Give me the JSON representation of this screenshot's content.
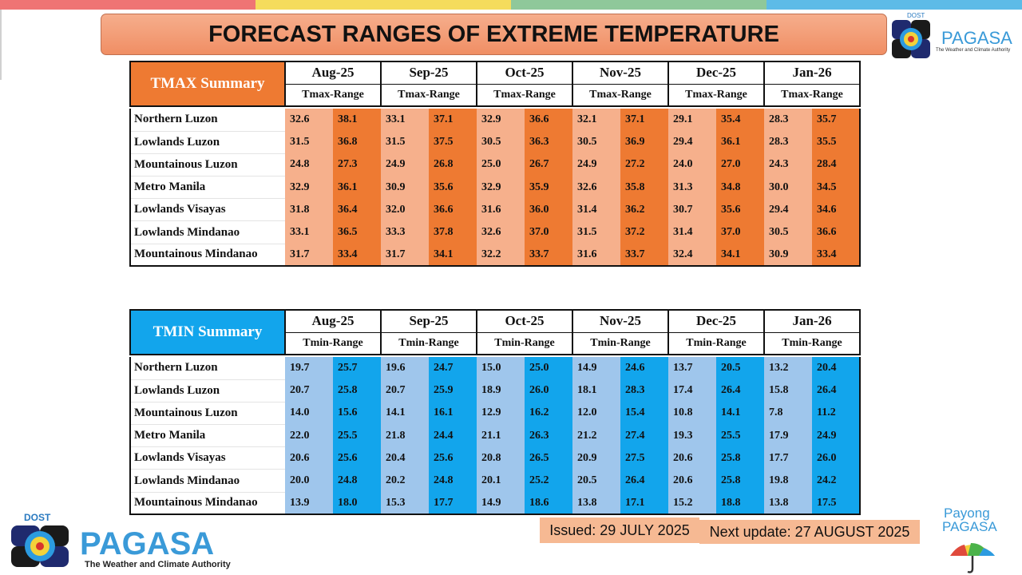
{
  "colors": {
    "top_stripes": [
      "#ef7474",
      "#f5dc5c",
      "#8fc89a",
      "#5dbbe7"
    ],
    "tmax_header": "#ee7a32",
    "tmax_low": "#f6b08c",
    "tmax_high": "#ee7a32",
    "tmin_header": "#12a5ec",
    "tmin_low": "#9fc6ec",
    "tmin_high": "#12a5ec"
  },
  "title": "FORECAST RANGES OF EXTREME TEMPERATURE",
  "logo_top": {
    "dost": "DOST",
    "name": "PAGASA",
    "tagline": "The Weather and Climate Authority"
  },
  "logo_bottom": {
    "dost": "DOST",
    "name": "PAGASA",
    "tagline": "The Weather and Climate Authority"
  },
  "payong": {
    "line1": "Payong",
    "line2": "PAGASA"
  },
  "tmax": {
    "title": "TMAX Summary",
    "months": [
      "Aug-25",
      "Sep-25",
      "Oct-25",
      "Nov-25",
      "Dec-25",
      "Jan-26"
    ],
    "range_label": "Tmax-Range",
    "rows": [
      {
        "region": "Northern Luzon",
        "values": [
          "32.6",
          "38.1",
          "33.1",
          "37.1",
          "32.9",
          "36.6",
          "32.1",
          "37.1",
          "29.1",
          "35.4",
          "28.3",
          "35.7"
        ]
      },
      {
        "region": "Lowlands Luzon",
        "values": [
          "31.5",
          "36.8",
          "31.5",
          "37.5",
          "30.5",
          "36.3",
          "30.5",
          "36.9",
          "29.4",
          "36.1",
          "28.3",
          "35.5"
        ]
      },
      {
        "region": "Mountainous Luzon",
        "values": [
          "24.8",
          "27.3",
          "24.9",
          "26.8",
          "25.0",
          "26.7",
          "24.9",
          "27.2",
          "24.0",
          "27.0",
          "24.3",
          "28.4"
        ]
      },
      {
        "region": "Metro Manila",
        "values": [
          "32.9",
          "36.1",
          "30.9",
          "35.6",
          "32.9",
          "35.9",
          "32.6",
          "35.8",
          "31.3",
          "34.8",
          "30.0",
          "34.5"
        ]
      },
      {
        "region": "Lowlands Visayas",
        "values": [
          "31.8",
          "36.4",
          "32.0",
          "36.6",
          "31.6",
          "36.0",
          "31.4",
          "36.2",
          "30.7",
          "35.6",
          "29.4",
          "34.6"
        ]
      },
      {
        "region": "Lowlands Mindanao",
        "values": [
          "33.1",
          "36.5",
          "33.3",
          "37.8",
          "32.6",
          "37.0",
          "31.5",
          "37.2",
          "31.4",
          "37.0",
          "30.5",
          "36.6"
        ]
      },
      {
        "region": "Mountainous Mindanao",
        "values": [
          "31.7",
          "33.4",
          "31.7",
          "34.1",
          "32.2",
          "33.7",
          "31.6",
          "33.7",
          "32.4",
          "34.1",
          "30.9",
          "33.4"
        ]
      }
    ]
  },
  "tmin": {
    "title": "TMIN Summary",
    "months": [
      "Aug-25",
      "Sep-25",
      "Oct-25",
      "Nov-25",
      "Dec-25",
      "Jan-26"
    ],
    "range_label": "Tmin-Range",
    "rows": [
      {
        "region": "Northern Luzon",
        "values": [
          "19.7",
          "25.7",
          "19.6",
          "24.7",
          "15.0",
          "25.0",
          "14.9",
          "24.6",
          "13.7",
          "20.5",
          "13.2",
          "20.4"
        ]
      },
      {
        "region": "Lowlands Luzon",
        "values": [
          "20.7",
          "25.8",
          "20.7",
          "25.9",
          "18.9",
          "26.0",
          "18.1",
          "28.3",
          "17.4",
          "26.4",
          "15.8",
          "26.4"
        ]
      },
      {
        "region": "Mountainous Luzon",
        "values": [
          "14.0",
          "15.6",
          "14.1",
          "16.1",
          "12.9",
          "16.2",
          "12.0",
          "15.4",
          "10.8",
          "14.1",
          "7.8",
          "11.2"
        ]
      },
      {
        "region": "Metro Manila",
        "values": [
          "22.0",
          "25.5",
          "21.8",
          "24.4",
          "21.1",
          "26.3",
          "21.2",
          "27.4",
          "19.3",
          "25.5",
          "17.9",
          "24.9"
        ]
      },
      {
        "region": "Lowlands Visayas",
        "values": [
          "20.6",
          "25.6",
          "20.4",
          "25.6",
          "20.8",
          "26.5",
          "20.9",
          "27.5",
          "20.6",
          "25.8",
          "17.7",
          "26.0"
        ]
      },
      {
        "region": "Lowlands Mindanao",
        "values": [
          "20.0",
          "24.8",
          "20.2",
          "24.8",
          "20.1",
          "25.2",
          "20.5",
          "26.4",
          "20.6",
          "25.8",
          "19.8",
          "24.2"
        ]
      },
      {
        "region": "Mountainous Mindanao",
        "values": [
          "13.9",
          "18.0",
          "15.3",
          "17.7",
          "14.9",
          "18.6",
          "13.8",
          "17.1",
          "15.2",
          "18.8",
          "13.8",
          "17.5"
        ]
      }
    ]
  },
  "issued": "Issued: 29 JULY 2025",
  "next_update": "Next update: 27 AUGUST 2025"
}
